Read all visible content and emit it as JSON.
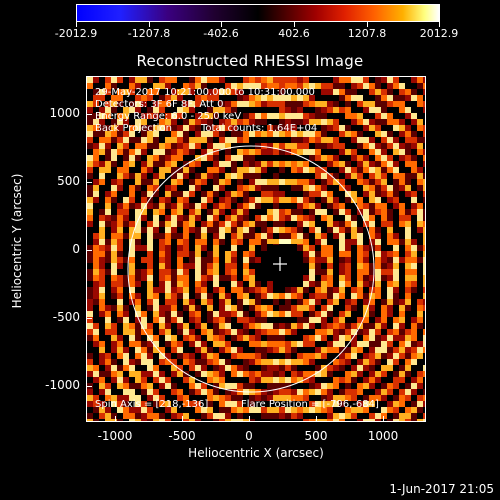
{
  "colorbar": {
    "tick_labels": [
      "-2012.9",
      "-1207.8",
      "-402.6",
      "402.6",
      "1207.8",
      "2012.9"
    ]
  },
  "title": "Reconstructed RHESSI Image",
  "info": {
    "line1": "29-May-2017 10:21:00.000 to 10:31:00.000",
    "line2": "Detectors: 3F 6F 8F, Att 0",
    "line3": "Energy Range: 6.0 - 25.0 keV",
    "line4_left": "Back Projection",
    "line4_right": "Total counts: 1.64E+04",
    "spin_axis": "Spin Axis = [218,-136]",
    "flare_position": "Flare Position = [-796,-684]"
  },
  "axes": {
    "xlabel": "Heliocentric X (arcsec)",
    "ylabel": "Heliocentric Y (arcsec)",
    "x_ticks": [
      "-1000",
      "-500",
      "0",
      "500",
      "1000"
    ],
    "y_ticks": [
      "1000",
      "500",
      "0",
      "-500",
      "-1000"
    ]
  },
  "footer": {
    "date": "1-Jun-2017 21:05"
  },
  "colors": {
    "background": "#000000",
    "foreground": "#ffffff"
  }
}
